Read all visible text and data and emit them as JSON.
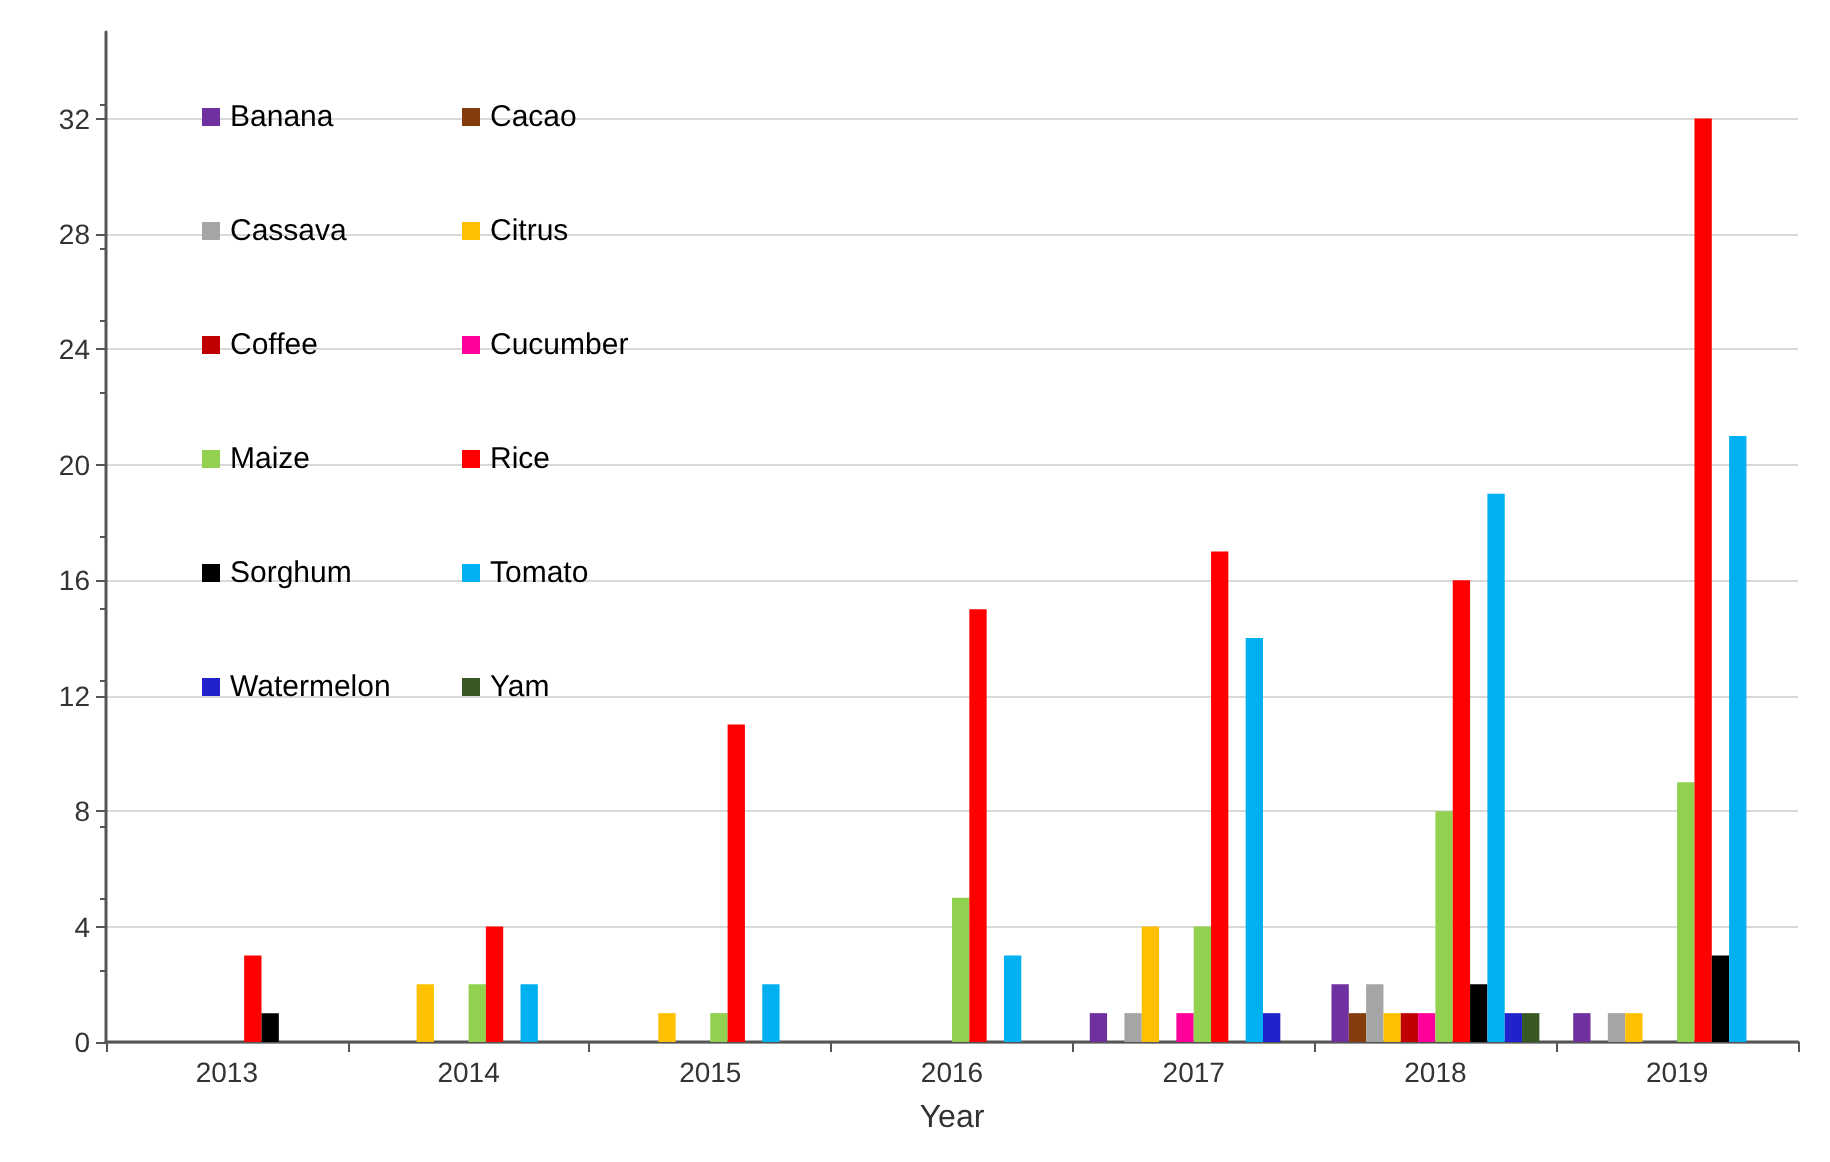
{
  "chart_data": {
    "type": "bar",
    "xlabel": "Year",
    "categories": [
      "2013",
      "2014",
      "2015",
      "2016",
      "2017",
      "2018",
      "2019"
    ],
    "series": [
      {
        "name": "Banana",
        "color": "#7030a0",
        "values": [
          null,
          null,
          null,
          null,
          1,
          2,
          1
        ]
      },
      {
        "name": "Cacao",
        "color": "#843c0c",
        "values": [
          null,
          null,
          null,
          null,
          null,
          1,
          null
        ]
      },
      {
        "name": "Cassava",
        "color": "#a5a5a5",
        "values": [
          null,
          null,
          null,
          null,
          1,
          2,
          1
        ]
      },
      {
        "name": "Citrus",
        "color": "#ffc000",
        "values": [
          null,
          2,
          1,
          null,
          4,
          1,
          1
        ]
      },
      {
        "name": "Coffee",
        "color": "#c00000",
        "values": [
          null,
          null,
          null,
          null,
          null,
          1,
          null
        ]
      },
      {
        "name": "Cucumber",
        "color": "#ff0099",
        "values": [
          null,
          null,
          null,
          null,
          1,
          1,
          null
        ]
      },
      {
        "name": "Maize",
        "color": "#92d050",
        "values": [
          null,
          2,
          1,
          5,
          4,
          8,
          9
        ]
      },
      {
        "name": "Rice",
        "color": "#ff0000",
        "values": [
          3,
          4,
          11,
          15,
          17,
          16,
          32
        ]
      },
      {
        "name": "Sorghum",
        "color": "#000000",
        "values": [
          1,
          null,
          null,
          null,
          null,
          2,
          3
        ]
      },
      {
        "name": "Tomato",
        "color": "#00b0f0",
        "values": [
          null,
          2,
          2,
          3,
          14,
          19,
          21
        ]
      },
      {
        "name": "Watermelon",
        "color": "#2222cc",
        "values": [
          null,
          null,
          null,
          null,
          1,
          1,
          null
        ]
      },
      {
        "name": "Yam",
        "color": "#385723",
        "values": [
          null,
          null,
          null,
          null,
          null,
          1,
          null
        ]
      }
    ],
    "ylim": [
      0,
      35
    ],
    "yticks": [
      0,
      4,
      8,
      12,
      16,
      20,
      24,
      28,
      32
    ],
    "grid": "y",
    "legend": "top left"
  }
}
